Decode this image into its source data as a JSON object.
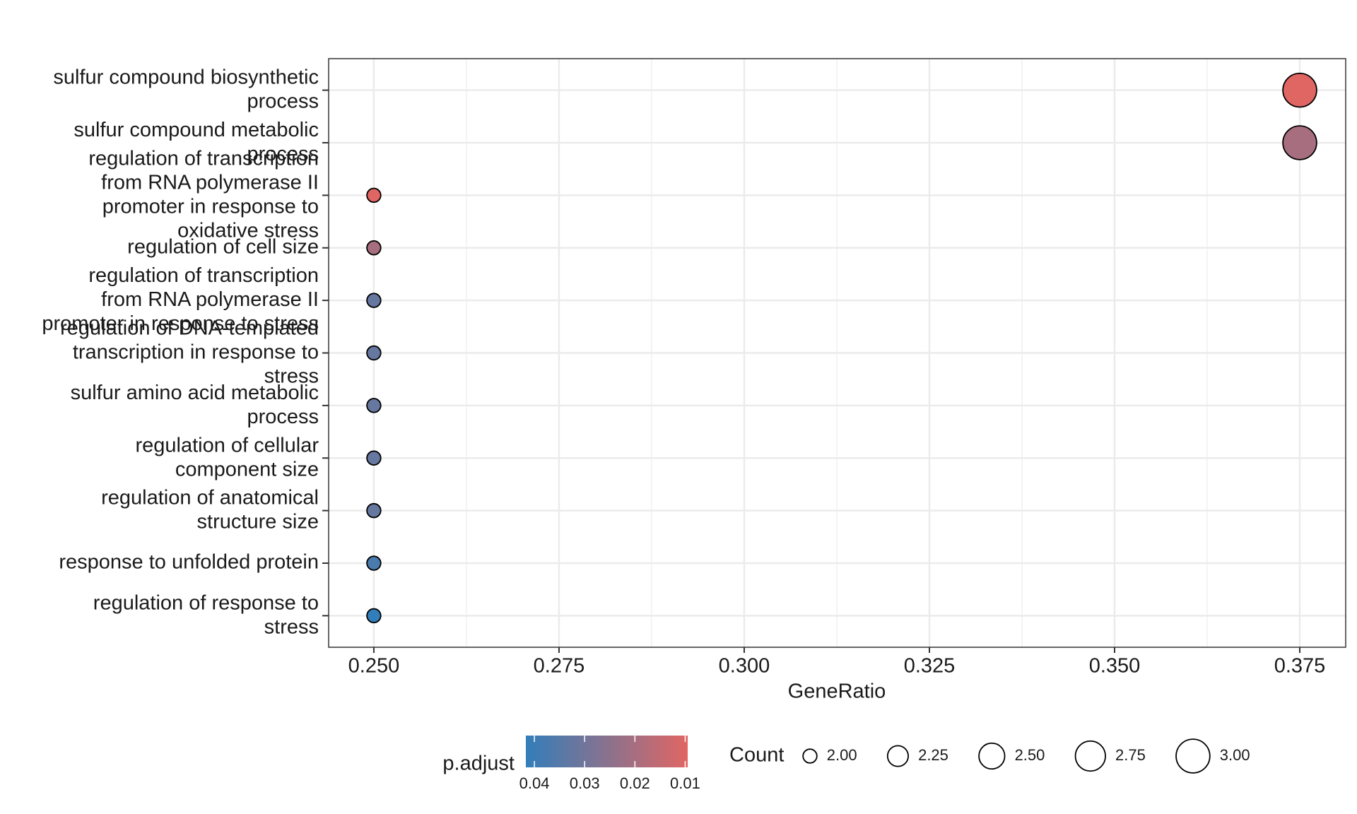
{
  "chart_data": {
    "type": "dot",
    "x_label": "GeneRatio",
    "categories": [
      "sulfur compound biosynthetic\nprocess",
      "sulfur compound metabolic\nprocess",
      "regulation of transcription\nfrom RNA polymerase II\npromoter in response to\noxidative stress",
      "regulation of cell size",
      "regulation of transcription\nfrom RNA polymerase II\npromoter in response to stress",
      "regulation of DNA-templated\ntranscription in response to\nstress",
      "sulfur amino acid metabolic\nprocess",
      "regulation of cellular\ncomponent size",
      "regulation of anatomical\nstructure size",
      "response to unfolded protein",
      "regulation of response to\nstress"
    ],
    "x": [
      0.375,
      0.375,
      0.25,
      0.25,
      0.25,
      0.25,
      0.25,
      0.25,
      0.25,
      0.25,
      0.25
    ],
    "count": [
      3,
      3,
      2,
      2,
      2,
      2,
      2,
      2,
      2,
      2,
      2
    ],
    "p_adjust": [
      0.0095,
      0.02,
      0.0095,
      0.02,
      0.032,
      0.032,
      0.032,
      0.032,
      0.032,
      0.037,
      0.0417
    ],
    "xlim": [
      0.2439,
      0.3812
    ],
    "xticks": [
      {
        "value": 0.25,
        "label": "0.250"
      },
      {
        "value": 0.275,
        "label": "0.275"
      },
      {
        "value": 0.3,
        "label": "0.300"
      },
      {
        "value": 0.325,
        "label": "0.325"
      },
      {
        "value": 0.35,
        "label": "0.350"
      },
      {
        "value": 0.375,
        "label": "0.375"
      }
    ],
    "grid": true,
    "color_scale": {
      "title": "p.adjust",
      "lim": [
        0.0417,
        0.0095
      ],
      "ticks": [
        0.04,
        0.03,
        0.02,
        0.01
      ],
      "colors": [
        "#327eba",
        "#e06663"
      ]
    },
    "size_scale": {
      "title": "Count",
      "lim": [
        2,
        3
      ],
      "ticks": [
        {
          "value": 2,
          "label": "2.00"
        },
        {
          "value": 2.25,
          "label": "2.25"
        },
        {
          "value": 2.5,
          "label": "2.50"
        },
        {
          "value": 2.75,
          "label": "2.75"
        },
        {
          "value": 3,
          "label": "3.00"
        }
      ]
    },
    "legend": "bottom"
  }
}
